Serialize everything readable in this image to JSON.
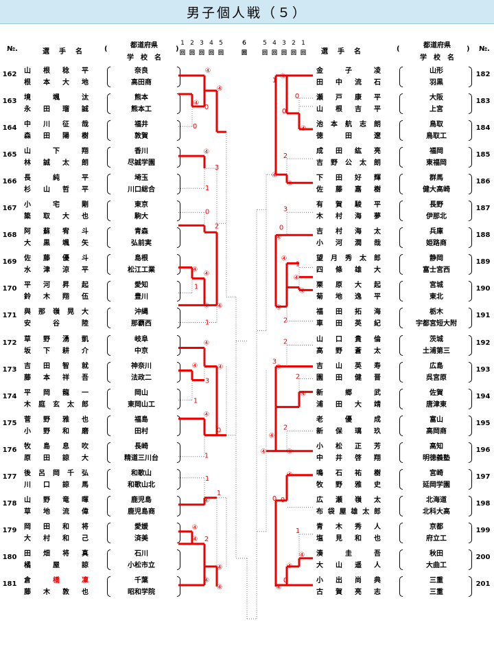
{
  "title": "男子個人戦（５）",
  "header": {
    "no": "№.",
    "player": "選　手　名",
    "lparen": "(",
    "rparen": ")",
    "pref": "都道府県",
    "school": "学　校　名"
  },
  "rounds_left": [
    "1",
    "2",
    "3",
    "4",
    "5",
    "",
    "6"
  ],
  "rounds_right": [
    "6",
    "",
    "5",
    "4",
    "3",
    "2",
    "1"
  ],
  "round_mark": "回",
  "win_mark": "④",
  "left": [
    {
      "no": "162",
      "p1": "山根稔平",
      "p2": "根本大地",
      "pref": "奈良",
      "school": "高田商"
    },
    {
      "no": "163",
      "p1": "境颯汰",
      "p2": "永田瑠誠",
      "pref": "熊本",
      "school": "熊本工"
    },
    {
      "no": "164",
      "p1": "中川征哉",
      "p2": "森田陽樹",
      "pref": "福井",
      "school": "敦賀"
    },
    {
      "no": "165",
      "p1": "山下翔",
      "p2": "林誠太朗",
      "pref": "香川",
      "school": "尽誠学園"
    },
    {
      "no": "166",
      "p1": "長純平",
      "p2": "杉山哲平",
      "pref": "埼玉",
      "school": "川口総合"
    },
    {
      "no": "167",
      "p1": "小宅剛",
      "p2": "簗取大也",
      "pref": "東京",
      "school": "駒大"
    },
    {
      "no": "168",
      "p1": "阿蘇宥斗",
      "p2": "大黒颯矢",
      "pref": "青森",
      "school": "弘前実"
    },
    {
      "no": "169",
      "p1": "佐藤優斗",
      "p2": "水津涼平",
      "pref": "島根",
      "school": "松江工業"
    },
    {
      "no": "170",
      "p1": "平河昇起",
      "p2": "鈴木翔伍",
      "pref": "愛知",
      "school": "豊川"
    },
    {
      "no": "171",
      "p1": "與那嶺晃大",
      "p2": "安谷陸",
      "pref": "沖縄",
      "school": "那覇西"
    },
    {
      "no": "172",
      "p1": "草野湧凱",
      "p2": "坂下耕介",
      "pref": "岐阜",
      "school": "中京"
    },
    {
      "no": "173",
      "p1": "吉田智就",
      "p2": "藤本祥吾",
      "pref": "神奈川",
      "school": "法政二"
    },
    {
      "no": "174",
      "p1": "平岡龍一",
      "p2": "木庭玄太郎",
      "pref": "岡山",
      "school": "東岡山工"
    },
    {
      "no": "175",
      "p1": "菅野雅也",
      "p2": "小野和磨",
      "pref": "福島",
      "school": "田村"
    },
    {
      "no": "176",
      "p1": "牧島息吹",
      "p2": "原田諒大",
      "pref": "長崎",
      "school": "精道三川台"
    },
    {
      "no": "177",
      "p1": "後呂岡千弘",
      "p2": "川口諒馬",
      "pref": "和歌山",
      "school": "和歌山北"
    },
    {
      "no": "178",
      "p1": "山野竜暉",
      "p2": "草地流偉",
      "pref": "鹿児島",
      "school": "鹿児島商"
    },
    {
      "no": "179",
      "p1": "岡田和将",
      "p2": "大村和己",
      "pref": "愛媛",
      "school": "済美"
    },
    {
      "no": "180",
      "p1": "田畑将真",
      "p2": "橘屋諒",
      "pref": "石川",
      "school": "小松市立"
    },
    {
      "no": "181",
      "p1": "倉橋凜",
      "p2": "藤木敦也",
      "pref": "千葉",
      "school": "昭和学院"
    }
  ],
  "right": [
    {
      "no": "182",
      "p1": "金子凌",
      "p2": "田中流石",
      "pref": "山形",
      "school": "羽黒"
    },
    {
      "no": "183",
      "p1": "瀬戸康平",
      "p2": "山根吉平",
      "pref": "大阪",
      "school": "上宮"
    },
    {
      "no": "184",
      "p1": "池本航志朗",
      "p2": "徳田遼",
      "pref": "鳥取",
      "school": "鳥取工"
    },
    {
      "no": "185",
      "p1": "成田紘亮",
      "p2": "吉野公太朗",
      "pref": "福岡",
      "school": "東福岡"
    },
    {
      "no": "186",
      "p1": "下田好輝",
      "p2": "佐藤嘉樹",
      "pref": "群馬",
      "school": "健大高崎"
    },
    {
      "no": "187",
      "p1": "有賀駿平",
      "p2": "木村海夢",
      "pref": "長野",
      "school": "伊那北"
    },
    {
      "no": "188",
      "p1": "吉村海太",
      "p2": "小河潤哉",
      "pref": "兵庫",
      "school": "姫路商"
    },
    {
      "no": "189",
      "p1": "望月秀太郎",
      "p2": "四條雄大",
      "pref": "静岡",
      "school": "富士宮西"
    },
    {
      "no": "190",
      "p1": "栗原大起",
      "p2": "菊地逸平",
      "pref": "宮城",
      "school": "東北"
    },
    {
      "no": "191",
      "p1": "福田拓海",
      "p2": "車田英紀",
      "pref": "栃木",
      "school": "宇都宮短大附"
    },
    {
      "no": "192",
      "p1": "山口貴倫",
      "p2": "高野蒼太",
      "pref": "茨城",
      "school": "土浦第三"
    },
    {
      "no": "193",
      "p1": "吉山英寿",
      "p2": "園田健晋",
      "pref": "広島",
      "school": "呉宮原"
    },
    {
      "no": "194",
      "p1": "新郷武",
      "p2": "浦田大靖",
      "pref": "佐賀",
      "school": "唐津東"
    },
    {
      "no": "195",
      "p1": "老優成",
      "p2": "新保璃玖",
      "pref": "富山",
      "school": "高岡商"
    },
    {
      "no": "196",
      "p1": "小松正芳",
      "p2": "中井啓翔",
      "pref": "高知",
      "school": "明徳義塾"
    },
    {
      "no": "197",
      "p1": "鳴石祐樹",
      "p2": "牧野雅史",
      "pref": "宮崎",
      "school": "延岡学園"
    },
    {
      "no": "198",
      "p1": "広瀬嶺太",
      "p2": "布袋屋雄太郎",
      "pref": "北海道",
      "school": "北科大高"
    },
    {
      "no": "199",
      "p1": "青木秀人",
      "p2": "塩見和也",
      "pref": "京都",
      "school": "府立工"
    },
    {
      "no": "200",
      "p1": "湊圭吾",
      "p2": "大山遥人",
      "pref": "秋田",
      "school": "大曲工"
    },
    {
      "no": "201",
      "p1": "小出尚典",
      "p2": "古賀亮志",
      "pref": "三重",
      "school": "三重"
    }
  ]
}
